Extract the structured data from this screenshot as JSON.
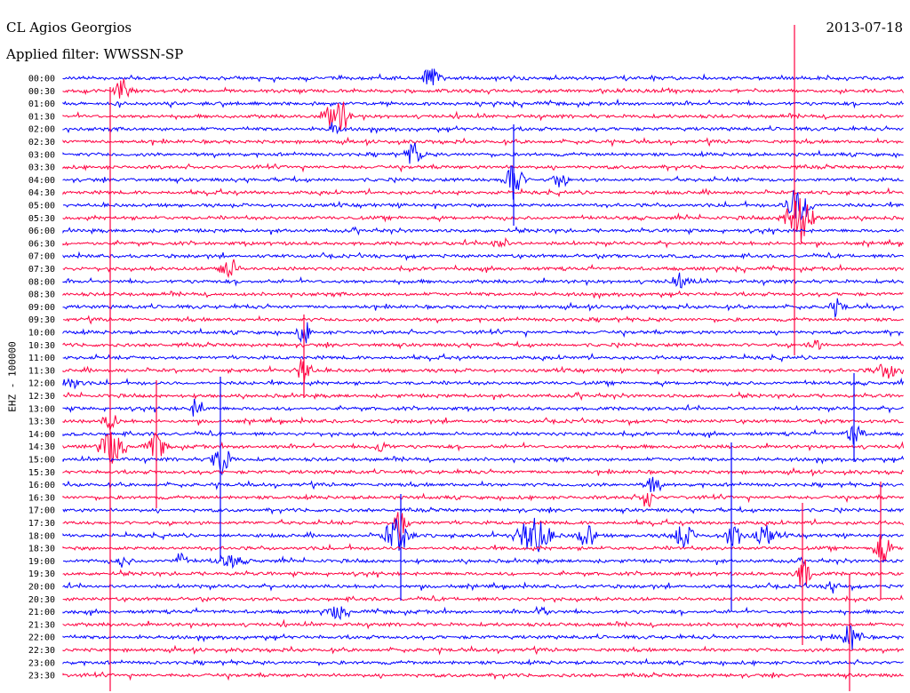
{
  "header": {
    "station": "CL Agios Georgios",
    "date": "2013-07-18",
    "filter_label": "Applied filter: WWSSN-SP"
  },
  "chart_data": {
    "type": "line",
    "title": "CL Agios Georgios",
    "subtitle": "Applied filter: WWSSN-SP",
    "ylabel": "EHZ - 100000",
    "date": "2013-07-18",
    "row_labels": [
      "00:00",
      "00:30",
      "01:00",
      "01:30",
      "02:00",
      "02:30",
      "03:00",
      "03:30",
      "04:00",
      "04:30",
      "05:00",
      "05:30",
      "06:00",
      "06:30",
      "07:00",
      "07:30",
      "08:00",
      "08:30",
      "09:00",
      "09:30",
      "10:00",
      "10:30",
      "11:00",
      "11:30",
      "12:00",
      "12:30",
      "13:00",
      "13:30",
      "14:00",
      "14:30",
      "15:00",
      "15:30",
      "16:00",
      "16:30",
      "17:00",
      "17:30",
      "18:00",
      "18:30",
      "19:00",
      "19:30",
      "20:00",
      "20:30",
      "21:00",
      "21:30",
      "22:00",
      "22:30",
      "23:00",
      "23:30"
    ],
    "series_colors": [
      "#0000ff",
      "#ff0040"
    ],
    "grid": false
  }
}
